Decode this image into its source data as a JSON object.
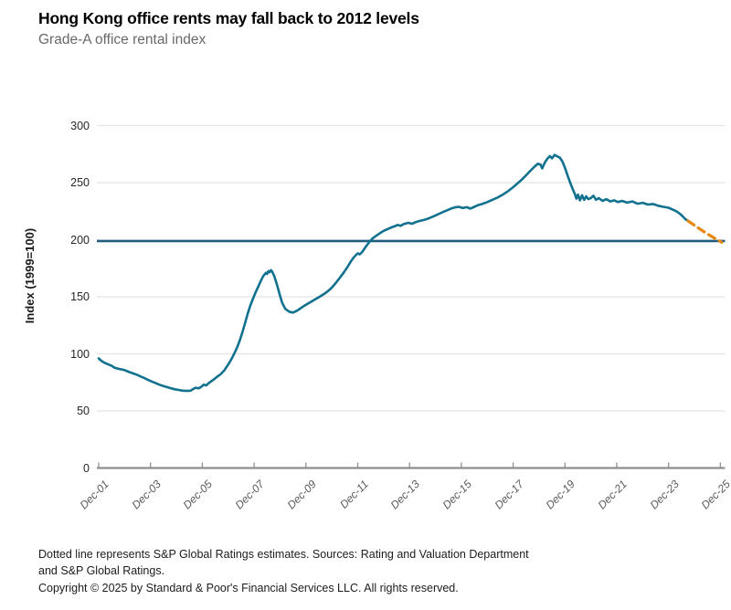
{
  "chart_data": {
    "type": "line",
    "title": "Hong Kong office rents may fall back to 2012 levels",
    "subtitle": "Grade-A office rental index",
    "ylabel": "Index (1999=100)",
    "ylim": [
      0,
      300
    ],
    "y_ticks": [
      0,
      50,
      100,
      150,
      200,
      250,
      300
    ],
    "x_tick_labels": [
      "Dec-01",
      "Dec-03",
      "Dec-05",
      "Dec-07",
      "Dec-09",
      "Dec-11",
      "Dec-13",
      "Dec-15",
      "Dec-17",
      "Dec-19",
      "Dec-21",
      "Dec-23",
      "Dec-25"
    ],
    "x_tick_years": [
      0,
      2,
      4,
      6,
      8,
      10,
      12,
      14,
      16,
      18,
      20,
      22,
      24
    ],
    "grid": "horizontal",
    "legend": "none",
    "colors": {
      "actual_line": "#11718f",
      "estimate_line": "#e8870e",
      "reference_line": "#1f5c80",
      "gridline": "#e4e4e4",
      "axis": "#8f8f8f"
    },
    "reference_line": {
      "value": 198.8
    },
    "series": [
      {
        "name": "Grade-A office rental index (actual)",
        "style": "solid",
        "points": [
          [
            0,
            96
          ],
          [
            0.1,
            94
          ],
          [
            0.2,
            92.5
          ],
          [
            0.35,
            91
          ],
          [
            0.5,
            89.5
          ],
          [
            0.6,
            88
          ],
          [
            0.75,
            87
          ],
          [
            0.9,
            86.3
          ],
          [
            1.0,
            85.8
          ],
          [
            1.1,
            84.8
          ],
          [
            1.25,
            83.5
          ],
          [
            1.4,
            82.3
          ],
          [
            1.5,
            81.5
          ],
          [
            1.6,
            80.3
          ],
          [
            1.75,
            79
          ],
          [
            1.9,
            77.3
          ],
          [
            2.05,
            75.8
          ],
          [
            2.2,
            74.3
          ],
          [
            2.35,
            73
          ],
          [
            2.5,
            71.8
          ],
          [
            2.65,
            70.8
          ],
          [
            2.8,
            69.8
          ],
          [
            2.95,
            69
          ],
          [
            3.1,
            68.3
          ],
          [
            3.25,
            67.8
          ],
          [
            3.4,
            67.5
          ],
          [
            3.55,
            67.8
          ],
          [
            3.65,
            69.3
          ],
          [
            3.75,
            70.3
          ],
          [
            3.85,
            69.8
          ],
          [
            3.95,
            71
          ],
          [
            4.05,
            73
          ],
          [
            4.15,
            72.3
          ],
          [
            4.25,
            74.5
          ],
          [
            4.4,
            76.8
          ],
          [
            4.55,
            79.5
          ],
          [
            4.7,
            82
          ],
          [
            4.85,
            85.5
          ],
          [
            4.95,
            89
          ],
          [
            5.05,
            92.5
          ],
          [
            5.15,
            96.5
          ],
          [
            5.25,
            101
          ],
          [
            5.35,
            106
          ],
          [
            5.45,
            112
          ],
          [
            5.55,
            119
          ],
          [
            5.65,
            127
          ],
          [
            5.75,
            135
          ],
          [
            5.85,
            142
          ],
          [
            5.95,
            148
          ],
          [
            6.05,
            153.5
          ],
          [
            6.15,
            158.5
          ],
          [
            6.25,
            163.5
          ],
          [
            6.35,
            168
          ],
          [
            6.45,
            171
          ],
          [
            6.5,
            170
          ],
          [
            6.55,
            172.5
          ],
          [
            6.6,
            171.5
          ],
          [
            6.65,
            173.3
          ],
          [
            6.7,
            172
          ],
          [
            6.78,
            168
          ],
          [
            6.88,
            161
          ],
          [
            6.98,
            152.5
          ],
          [
            7.08,
            145
          ],
          [
            7.2,
            139.5
          ],
          [
            7.35,
            137
          ],
          [
            7.5,
            136.2
          ],
          [
            7.65,
            137.8
          ],
          [
            7.8,
            140
          ],
          [
            7.95,
            142.3
          ],
          [
            8.1,
            144.3
          ],
          [
            8.25,
            146.3
          ],
          [
            8.4,
            148.3
          ],
          [
            8.55,
            150.3
          ],
          [
            8.7,
            152.5
          ],
          [
            8.85,
            155
          ],
          [
            9.0,
            158
          ],
          [
            9.15,
            162
          ],
          [
            9.3,
            166.5
          ],
          [
            9.45,
            171
          ],
          [
            9.6,
            176
          ],
          [
            9.72,
            180.5
          ],
          [
            9.82,
            183.8
          ],
          [
            9.92,
            186.3
          ],
          [
            10.0,
            188
          ],
          [
            10.08,
            187.2
          ],
          [
            10.18,
            189.5
          ],
          [
            10.28,
            192.8
          ],
          [
            10.38,
            196
          ],
          [
            10.48,
            198.8
          ],
          [
            10.58,
            201.3
          ],
          [
            10.68,
            203
          ],
          [
            10.78,
            204.5
          ],
          [
            10.9,
            206.3
          ],
          [
            11.0,
            207.8
          ],
          [
            11.15,
            209.3
          ],
          [
            11.3,
            210.8
          ],
          [
            11.45,
            212
          ],
          [
            11.55,
            213
          ],
          [
            11.65,
            212.2
          ],
          [
            11.78,
            213.8
          ],
          [
            11.95,
            214.8
          ],
          [
            12.1,
            214
          ],
          [
            12.25,
            215.5
          ],
          [
            12.4,
            216.5
          ],
          [
            12.55,
            217.3
          ],
          [
            12.7,
            218.3
          ],
          [
            12.85,
            219.8
          ],
          [
            13.0,
            221.3
          ],
          [
            13.15,
            222.8
          ],
          [
            13.3,
            224.3
          ],
          [
            13.45,
            225.8
          ],
          [
            13.6,
            227.3
          ],
          [
            13.75,
            228.3
          ],
          [
            13.9,
            228.8
          ],
          [
            14.05,
            227.8
          ],
          [
            14.2,
            228.5
          ],
          [
            14.35,
            227.3
          ],
          [
            14.5,
            228.8
          ],
          [
            14.65,
            230.3
          ],
          [
            14.8,
            231.3
          ],
          [
            15.0,
            233
          ],
          [
            15.2,
            235
          ],
          [
            15.4,
            237
          ],
          [
            15.6,
            239.5
          ],
          [
            15.8,
            242.5
          ],
          [
            16.0,
            246
          ],
          [
            16.2,
            250
          ],
          [
            16.35,
            253
          ],
          [
            16.5,
            256.5
          ],
          [
            16.65,
            260
          ],
          [
            16.8,
            263.5
          ],
          [
            16.95,
            266.5
          ],
          [
            17.05,
            266
          ],
          [
            17.12,
            262.5
          ],
          [
            17.22,
            267.5
          ],
          [
            17.32,
            271
          ],
          [
            17.42,
            273.3
          ],
          [
            17.5,
            271.3
          ],
          [
            17.6,
            274.3
          ],
          [
            17.7,
            273
          ],
          [
            17.8,
            272
          ],
          [
            17.9,
            268.5
          ],
          [
            18.0,
            263
          ],
          [
            18.1,
            256.5
          ],
          [
            18.2,
            250
          ],
          [
            18.3,
            244.3
          ],
          [
            18.38,
            240
          ],
          [
            18.44,
            236
          ],
          [
            18.5,
            239.5
          ],
          [
            18.58,
            234.5
          ],
          [
            18.66,
            239
          ],
          [
            18.74,
            235
          ],
          [
            18.82,
            238
          ],
          [
            18.9,
            235.5
          ],
          [
            19.0,
            236.5
          ],
          [
            19.1,
            238.5
          ],
          [
            19.2,
            235
          ],
          [
            19.3,
            236.5
          ],
          [
            19.45,
            234
          ],
          [
            19.6,
            235.5
          ],
          [
            19.75,
            233.5
          ],
          [
            19.9,
            234.5
          ],
          [
            20.05,
            233
          ],
          [
            20.2,
            234
          ],
          [
            20.4,
            232.5
          ],
          [
            20.6,
            233.5
          ],
          [
            20.8,
            231.5
          ],
          [
            21.0,
            232.3
          ],
          [
            21.2,
            230.8
          ],
          [
            21.4,
            231.3
          ],
          [
            21.6,
            229.8
          ],
          [
            21.8,
            228.8
          ],
          [
            22.0,
            228
          ],
          [
            22.15,
            226.5
          ],
          [
            22.3,
            225
          ],
          [
            22.45,
            222.5
          ],
          [
            22.55,
            220.3
          ],
          [
            22.65,
            218
          ],
          [
            22.75,
            216.5
          ]
        ]
      },
      {
        "name": "S&P Global Ratings estimates",
        "style": "dashed",
        "points": [
          [
            22.75,
            216.5
          ],
          [
            23.1,
            211
          ],
          [
            23.45,
            205.8
          ],
          [
            23.8,
            201
          ],
          [
            24.05,
            197.8
          ]
        ]
      }
    ]
  },
  "notes": {
    "footnote_line1": "Dotted line represents S&P Global Ratings estimates. Sources: Rating and Valuation Department",
    "footnote_line2": "and S&P Global Ratings.",
    "copyright": "Copyright © 2025 by Standard & Poor's Financial Services LLC. All rights reserved."
  }
}
